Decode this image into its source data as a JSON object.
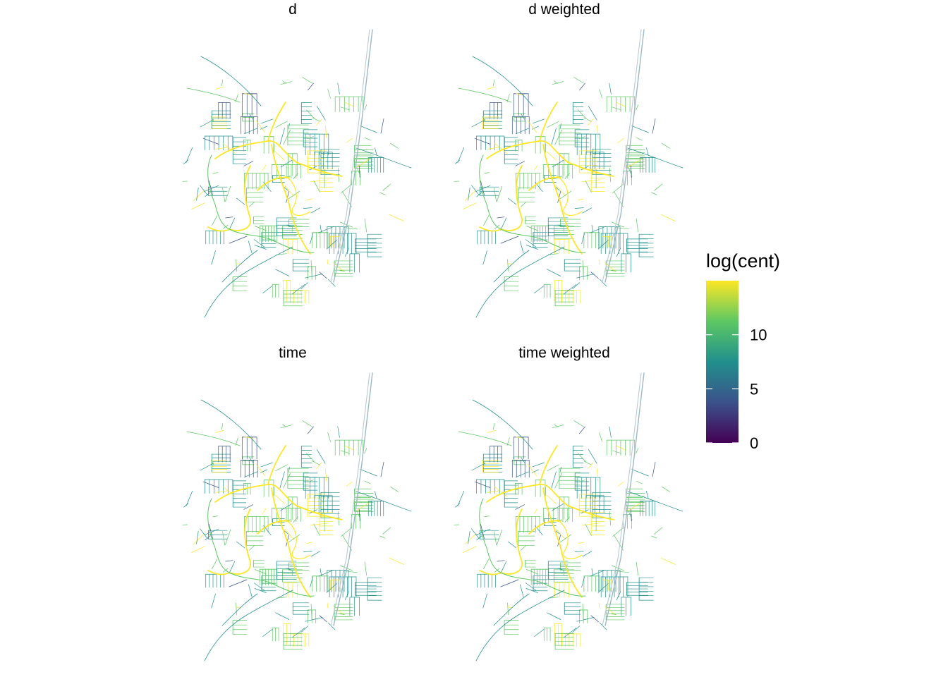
{
  "chart_data": {
    "type": "map",
    "layout": "2x2 facets",
    "facets": [
      {
        "title": "d"
      },
      {
        "title": "d  weighted"
      },
      {
        "title": "time"
      },
      {
        "title": "time  weighted"
      }
    ],
    "legend": {
      "title": "log(cent)",
      "placement": "right",
      "scale": "viridis",
      "range": [
        0,
        15
      ],
      "ticks": [
        0,
        5,
        10
      ],
      "tick_labels": [
        "0",
        "5",
        "10"
      ],
      "colors": [
        "#440154",
        "#3B528B",
        "#21908C",
        "#5DC863",
        "#FDE725"
      ]
    }
  }
}
